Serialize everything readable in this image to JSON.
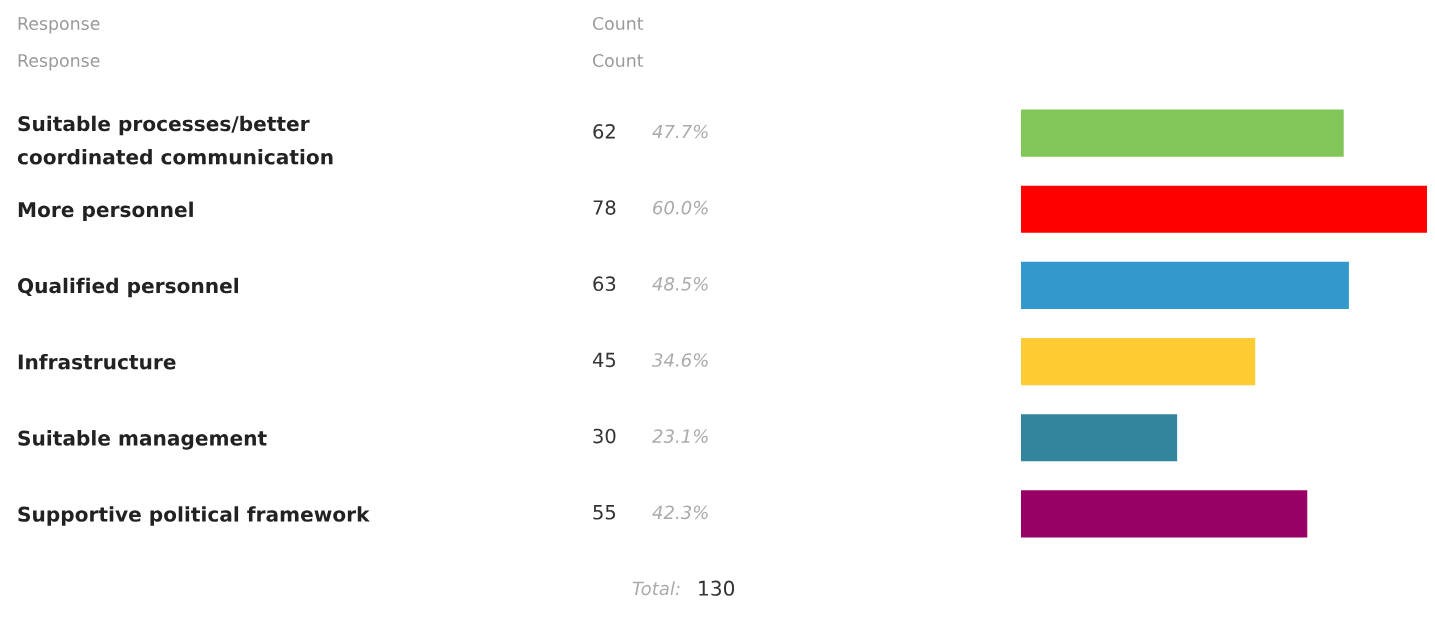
{
  "chart_data": {
    "type": "bar",
    "orientation": "horizontal",
    "categories": [
      "Suitable processes/better\ncoordinated communication",
      "More personnel",
      "Qualified personnel",
      "Infrastructure",
      "Suitable management",
      "Supportive political framework"
    ],
    "values": [
      62,
      78,
      63,
      45,
      30,
      55
    ],
    "colors": [
      "#82c65a",
      "#ff0000",
      "#3399cc",
      "#ffcc33",
      "#33859e",
      "#990066"
    ],
    "xlim": [
      0,
      78
    ],
    "data_labels": true,
    "tick_labels": "y",
    "grid": false,
    "legend": false,
    "annotations": [
      "Response",
      "Count",
      "Response",
      "Count",
      "Total:",
      "130",
      "47.7%",
      "60.0%",
      "48.5%",
      "34.6%",
      "23.1%",
      "42.3%"
    ]
  }
}
